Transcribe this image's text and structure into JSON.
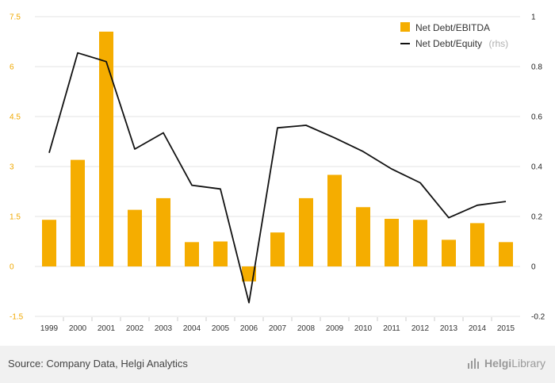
{
  "chart_data": {
    "type": "bar",
    "categories": [
      "1999",
      "2000",
      "2001",
      "2002",
      "2003",
      "2004",
      "2005",
      "2006",
      "2007",
      "2008",
      "2009",
      "2010",
      "2011",
      "2012",
      "2013",
      "2014",
      "2015"
    ],
    "series": [
      {
        "name": "Net Debt/EBITDA",
        "type": "bar",
        "axis": "left",
        "values": [
          1.4,
          3.2,
          7.05,
          1.7,
          2.05,
          0.73,
          0.75,
          -0.45,
          1.02,
          2.05,
          2.75,
          1.78,
          1.43,
          1.4,
          0.8,
          1.3,
          0.73
        ]
      },
      {
        "name": "Net Debt/Equity",
        "name_suffix": "(rhs)",
        "type": "line",
        "axis": "right",
        "values": [
          0.455,
          0.855,
          0.82,
          0.47,
          0.535,
          0.325,
          0.31,
          -0.145,
          0.555,
          0.565,
          0.515,
          0.46,
          0.39,
          0.335,
          0.195,
          0.245,
          0.26
        ]
      }
    ],
    "y_left": {
      "min": -1.5,
      "max": 7.5,
      "ticks": [
        "7.5",
        "6",
        "4.5",
        "3",
        "1.5",
        "0",
        "-1.5"
      ],
      "tick_values": [
        7.5,
        6,
        4.5,
        3,
        1.5,
        0,
        -1.5
      ]
    },
    "y_right": {
      "min": -0.2,
      "max": 1,
      "ticks": [
        "1",
        "0.8",
        "0.6",
        "0.4",
        "0.2",
        "0",
        "-0.2"
      ],
      "tick_values": [
        1,
        0.8,
        0.6,
        0.4,
        0.2,
        0,
        -0.2
      ]
    },
    "grid": "horizontal",
    "legend_position": "top-right",
    "colors": {
      "bar": "#f5ad00",
      "line": "#111111",
      "left_ticks": "#f0a800",
      "grid": "#e3e3e3"
    }
  },
  "footer": {
    "source": "Source: Company Data, Helgi Analytics",
    "logo_part1": "Helgi",
    "logo_part2": "Library",
    "logo_icon": "bar-chart-icon"
  }
}
